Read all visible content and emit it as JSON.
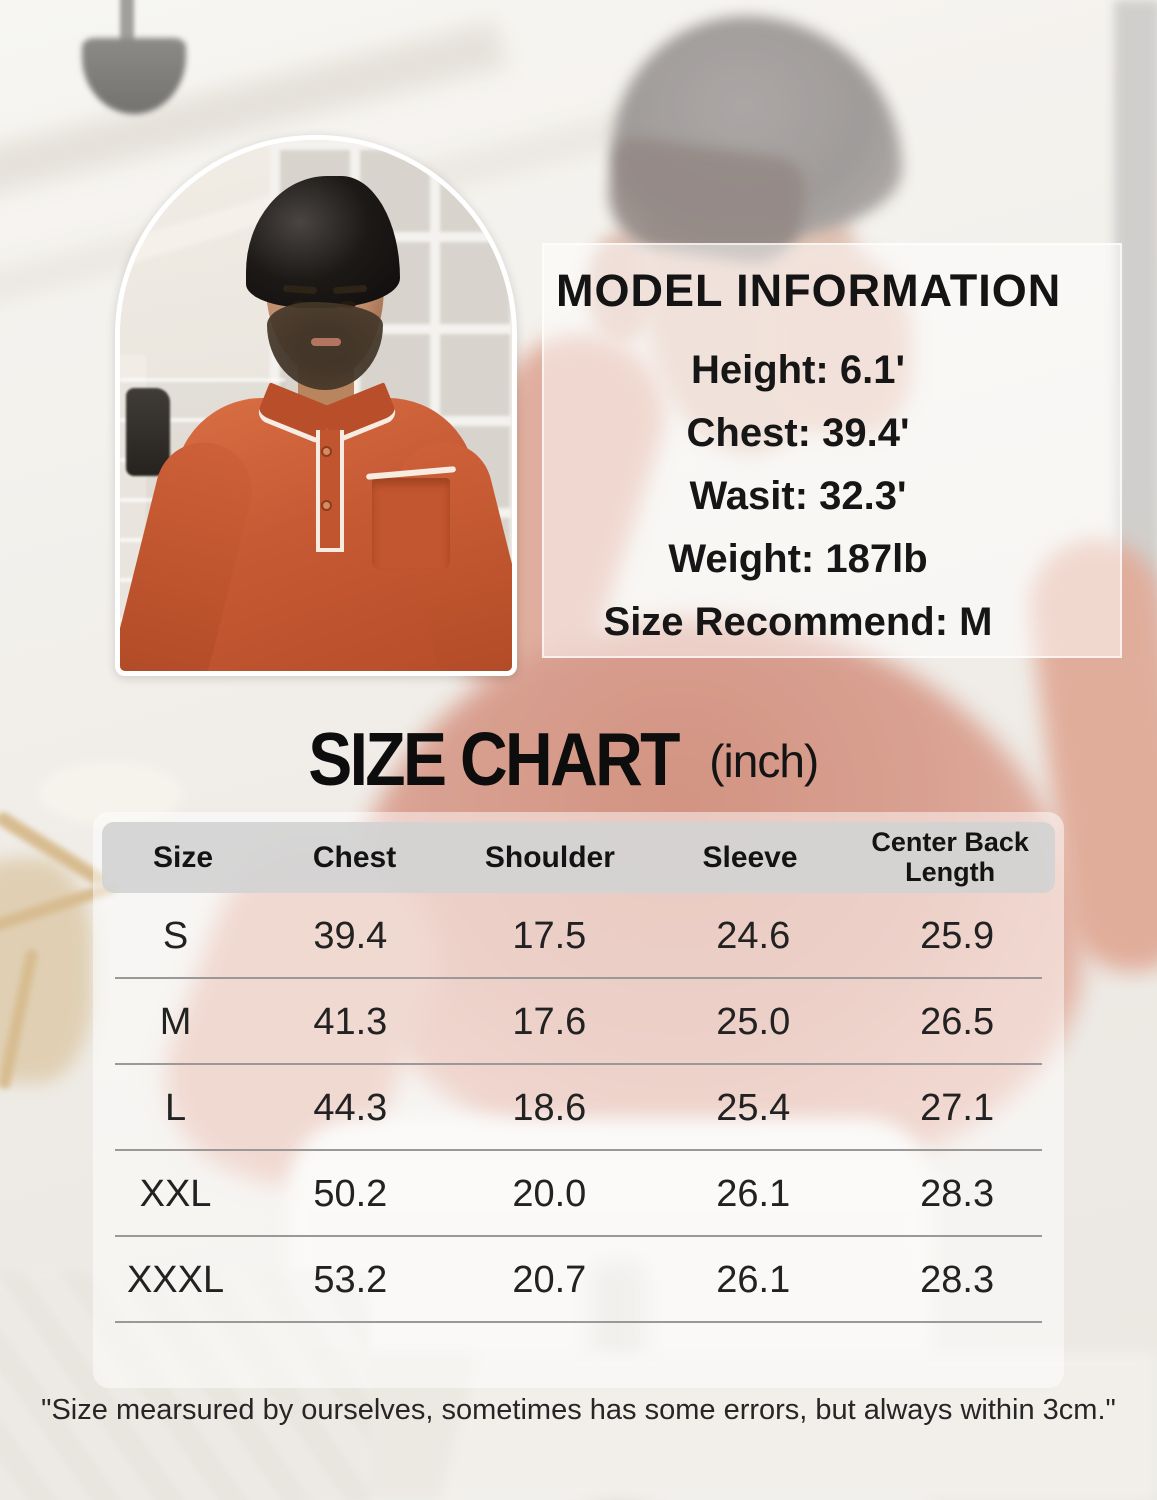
{
  "model_info": {
    "title": "MODEL INFORMATION",
    "lines": [
      "Height: 6.1'",
      "Chest: 39.4'",
      "Wasit: 32.3'",
      "Weight: 187lb",
      "Size Recommend: M"
    ]
  },
  "chart_data": {
    "type": "table",
    "title": "SIZE CHART",
    "unit_label": "(inch)",
    "columns": [
      "Size",
      "Chest",
      "Shoulder",
      "Sleeve",
      "Center Back Length"
    ],
    "rows": [
      [
        "S",
        "39.4",
        "17.5",
        "24.6",
        "25.9"
      ],
      [
        "M",
        "41.3",
        "17.6",
        "25.0",
        "26.5"
      ],
      [
        "L",
        "44.3",
        "18.6",
        "25.4",
        "27.1"
      ],
      [
        "XXL",
        "50.2",
        "20.0",
        "26.1",
        "28.3"
      ],
      [
        "XXXL",
        "53.2",
        "20.7",
        "26.1",
        "28.3"
      ]
    ]
  },
  "footer_note": "\"Size mearsured by ourselves, sometimes has some errors, but always within 3cm.\"",
  "colors": {
    "polo_rust": "#c65a35",
    "table_header_gray": "#d2d2d2",
    "text_black": "#141414"
  }
}
